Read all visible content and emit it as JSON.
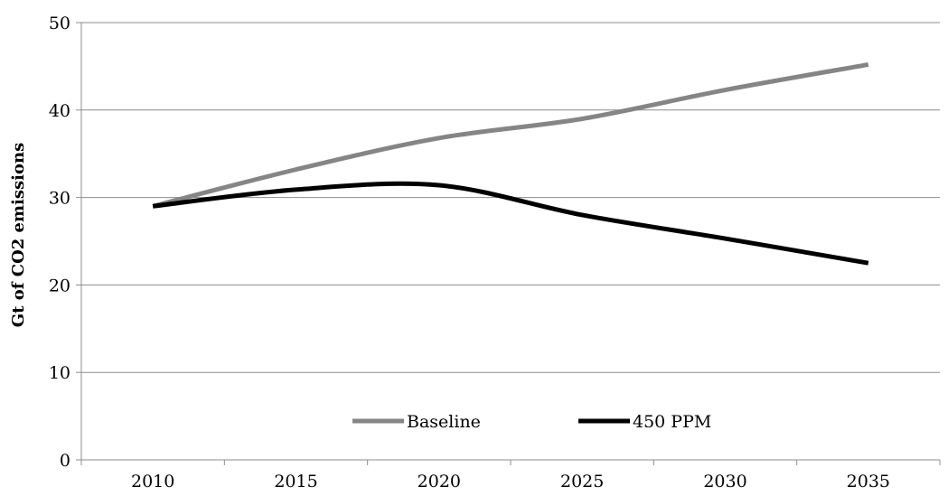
{
  "chart_data": {
    "type": "line",
    "title": "",
    "xlabel": "",
    "ylabel": "Gt of CO2 emissions",
    "ylim": [
      0,
      50
    ],
    "yticks": [
      0,
      10,
      20,
      30,
      40,
      50
    ],
    "categories": [
      "2010",
      "2015",
      "2020",
      "2025",
      "2030",
      "2035"
    ],
    "grid": true,
    "legend_position": "bottom-center",
    "series": [
      {
        "name": "Baseline",
        "color": "#858585",
        "values": [
          29.0,
          33.2,
          36.8,
          39.0,
          42.3,
          45.2
        ]
      },
      {
        "name": "450 PPM",
        "color": "#000000",
        "values": [
          29.0,
          30.9,
          31.4,
          28.0,
          25.3,
          22.5
        ]
      }
    ]
  }
}
